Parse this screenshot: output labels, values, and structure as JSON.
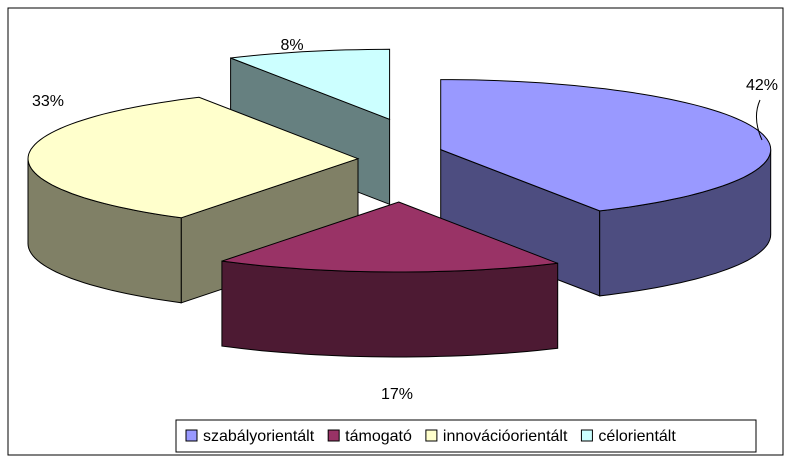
{
  "chart_data": {
    "type": "pie3d",
    "categories": [
      "szabályorientált",
      "támogató",
      "innovációorientált",
      "célorientált"
    ],
    "values": [
      42,
      17,
      33,
      8
    ],
    "value_labels": [
      "42%",
      "17%",
      "33%",
      "8%"
    ],
    "colors": [
      "#9999ff",
      "#993366",
      "#ffffcc",
      "#ccffff"
    ],
    "legend": "bottom"
  }
}
